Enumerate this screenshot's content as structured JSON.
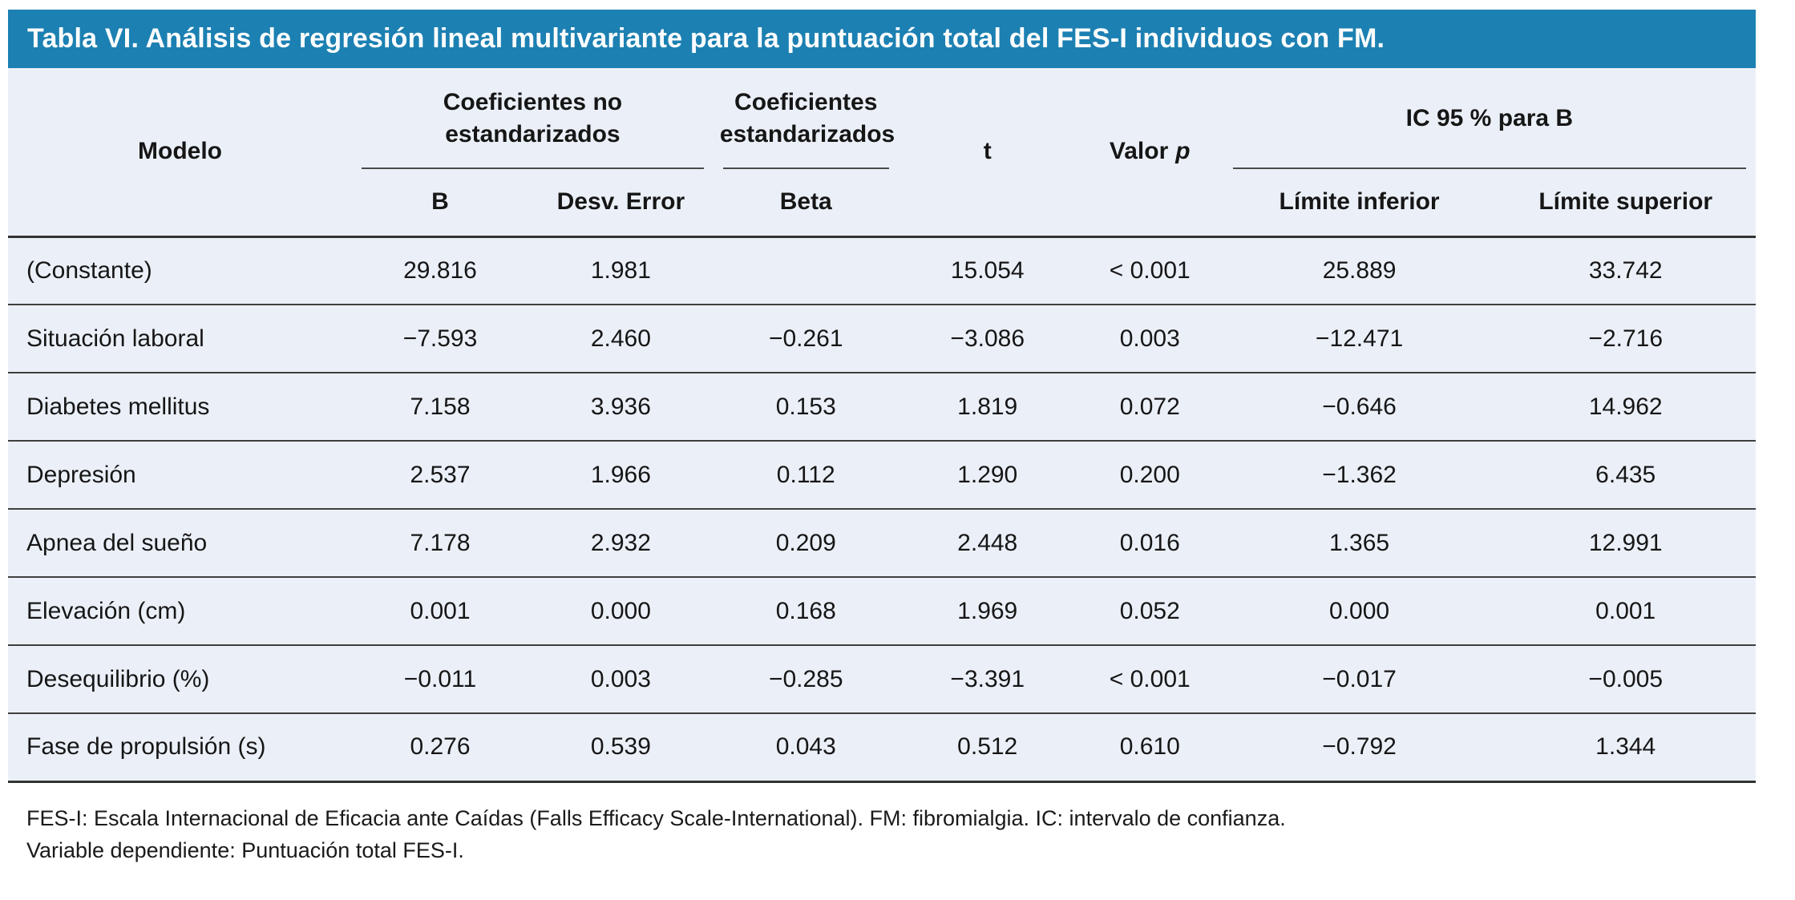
{
  "title": "Tabla VI. Análisis de regresión lineal multivariante para la puntuación total del FES-I individuos con FM.",
  "colors": {
    "title_bar_bg": "#1c80b2",
    "title_text": "#ffffff",
    "table_bg": "#ebf0f8",
    "rule": "#3e3e3e"
  },
  "table": {
    "col1_header": "Modelo",
    "groups": {
      "no_std": "Coeficientes no estandarizados",
      "std": "Coeficientes estandarizados",
      "ic": "IC 95 % para B"
    },
    "t_header": "t",
    "p_header": {
      "text": "Valor",
      "italic": "p"
    },
    "subheaders": {
      "b": "B",
      "std_error": "Desv. Error",
      "beta": "Beta",
      "lower": "Límite inferior",
      "upper": "Límite superior"
    },
    "rows": [
      {
        "label": "(Constante)",
        "b": "29.816",
        "std_error": "1.981",
        "beta": "",
        "t": "15.054",
        "p": "< 0.001",
        "lower": "25.889",
        "upper": "33.742"
      },
      {
        "label": "Situación laboral",
        "b": "−7.593",
        "std_error": "2.460",
        "beta": "−0.261",
        "t": "−3.086",
        "p": "0.003",
        "lower": "−12.471",
        "upper": "−2.716"
      },
      {
        "label": "Diabetes mellitus",
        "b": "7.158",
        "std_error": "3.936",
        "beta": "0.153",
        "t": "1.819",
        "p": "0.072",
        "lower": "−0.646",
        "upper": "14.962"
      },
      {
        "label": "Depresión",
        "b": "2.537",
        "std_error": "1.966",
        "beta": "0.112",
        "t": "1.290",
        "p": "0.200",
        "lower": "−1.362",
        "upper": "6.435"
      },
      {
        "label": "Apnea del sueño",
        "b": "7.178",
        "std_error": "2.932",
        "beta": "0.209",
        "t": "2.448",
        "p": "0.016",
        "lower": "1.365",
        "upper": "12.991"
      },
      {
        "label": "Elevación (cm)",
        "b": "0.001",
        "std_error": "0.000",
        "beta": "0.168",
        "t": "1.969",
        "p": "0.052",
        "lower": "0.000",
        "upper": "0.001"
      },
      {
        "label": "Desequilibrio (%)",
        "b": "−0.011",
        "std_error": "0.003",
        "beta": "−0.285",
        "t": "−3.391",
        "p": "< 0.001",
        "lower": "−0.017",
        "upper": "−0.005"
      },
      {
        "label": "Fase de propulsión (s)",
        "b": "0.276",
        "std_error": "0.539",
        "beta": "0.043",
        "t": "0.512",
        "p": "0.610",
        "lower": "−0.792",
        "upper": "1.344"
      }
    ]
  },
  "footnotes": [
    "FES-I: Escala Internacional de Eficacia ante Caídas (Falls Efficacy Scale-International). FM: fibromialgia. IC: intervalo de confianza.",
    "Variable dependiente: Puntuación total FES-I."
  ]
}
